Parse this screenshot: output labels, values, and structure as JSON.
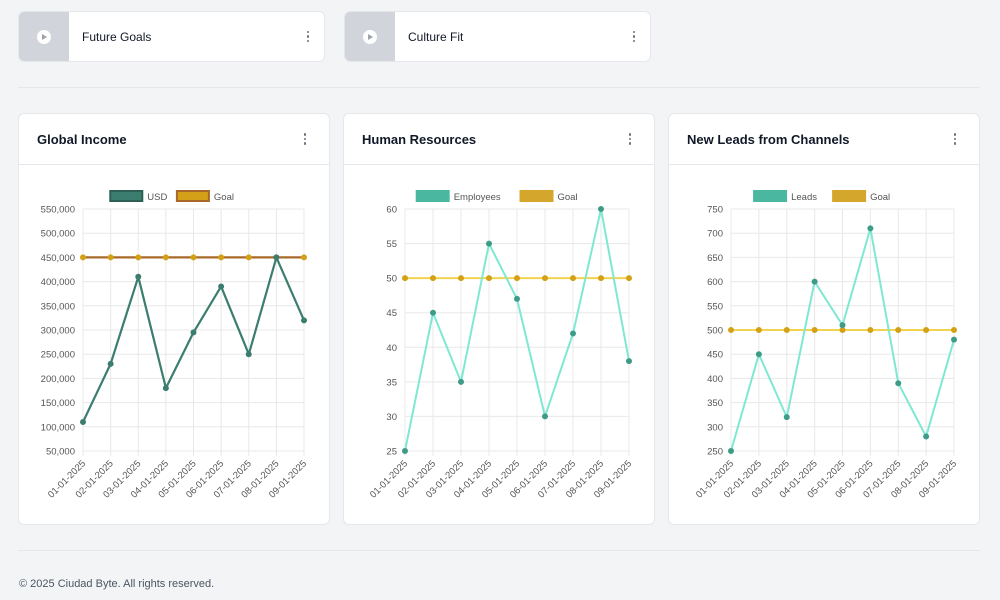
{
  "video_cards": [
    {
      "title": "Future Goals"
    },
    {
      "title": "Culture Fit"
    }
  ],
  "footer": {
    "text": "© 2025 Ciudad Byte. All rights reserved."
  },
  "colors": {
    "usd": "#3b7d6f",
    "goal_global": "#a8682a",
    "goal_marker": "#d4a017",
    "teal_light": "#7ee8d2",
    "teal_marker": "#3d9c88",
    "goal_yellow": "#f2d34f"
  },
  "chart_data": [
    {
      "type": "line",
      "title": "Global Income",
      "x": [
        "01-01-2025",
        "02-01-2025",
        "03-01-2025",
        "04-01-2025",
        "05-01-2025",
        "06-01-2025",
        "07-01-2025",
        "08-01-2025",
        "09-01-2025"
      ],
      "series": [
        {
          "name": "USD",
          "values": [
            110000,
            230000,
            410000,
            180000,
            295000,
            390000,
            250000,
            450000,
            320000
          ]
        },
        {
          "name": "Goal",
          "values": [
            450000,
            450000,
            450000,
            450000,
            450000,
            450000,
            450000,
            450000,
            450000
          ]
        }
      ],
      "ylim": [
        50000,
        550000
      ],
      "yticks": [
        "550,000",
        "500,000",
        "450,000",
        "400,000",
        "350,000",
        "300,000",
        "250,000",
        "200,000",
        "150,000",
        "100,000",
        "50,000"
      ],
      "legend": "top",
      "grid": true
    },
    {
      "type": "line",
      "title": "Human Resources",
      "x": [
        "01-01-2025",
        "02-01-2025",
        "03-01-2025",
        "04-01-2025",
        "05-01-2025",
        "06-01-2025",
        "07-01-2025",
        "08-01-2025",
        "09-01-2025"
      ],
      "series": [
        {
          "name": "Employees",
          "values": [
            25,
            45,
            35,
            55,
            47,
            30,
            42,
            60,
            38
          ]
        },
        {
          "name": "Goal",
          "values": [
            50,
            50,
            50,
            50,
            50,
            50,
            50,
            50,
            50
          ]
        }
      ],
      "ylim": [
        25,
        60
      ],
      "yticks": [
        "60",
        "55",
        "50",
        "45",
        "40",
        "35",
        "30",
        "25"
      ],
      "legend": "top",
      "grid": true
    },
    {
      "type": "line",
      "title": "New Leads from Channels",
      "x": [
        "01-01-2025",
        "02-01-2025",
        "03-01-2025",
        "04-01-2025",
        "05-01-2025",
        "06-01-2025",
        "07-01-2025",
        "08-01-2025",
        "09-01-2025"
      ],
      "series": [
        {
          "name": "Leads",
          "values": [
            250,
            450,
            320,
            600,
            510,
            710,
            390,
            280,
            480
          ]
        },
        {
          "name": "Goal",
          "values": [
            500,
            500,
            500,
            500,
            500,
            500,
            500,
            500,
            500
          ]
        }
      ],
      "ylim": [
        250,
        750
      ],
      "yticks": [
        "750",
        "700",
        "650",
        "600",
        "550",
        "500",
        "450",
        "400",
        "350",
        "300",
        "250"
      ],
      "legend": "top",
      "grid": true
    }
  ]
}
